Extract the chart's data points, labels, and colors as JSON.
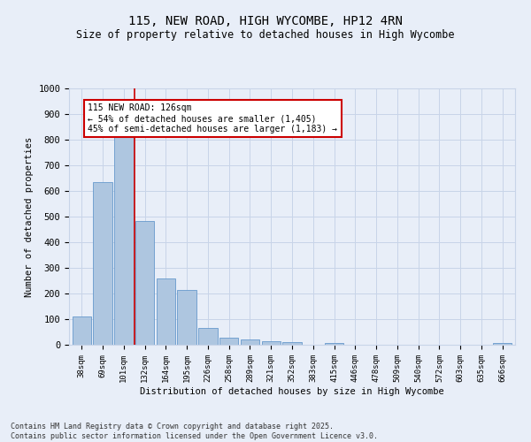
{
  "title1": "115, NEW ROAD, HIGH WYCOMBE, HP12 4RN",
  "title2": "Size of property relative to detached houses in High Wycombe",
  "xlabel": "Distribution of detached houses by size in High Wycombe",
  "ylabel": "Number of detached properties",
  "categories": [
    "38sqm",
    "69sqm",
    "101sqm",
    "132sqm",
    "164sqm",
    "195sqm",
    "226sqm",
    "258sqm",
    "289sqm",
    "321sqm",
    "352sqm",
    "383sqm",
    "415sqm",
    "446sqm",
    "478sqm",
    "509sqm",
    "540sqm",
    "572sqm",
    "603sqm",
    "635sqm",
    "666sqm"
  ],
  "values": [
    110,
    635,
    810,
    483,
    258,
    213,
    67,
    28,
    20,
    13,
    9,
    0,
    7,
    0,
    0,
    0,
    0,
    0,
    0,
    0,
    8
  ],
  "bar_color": "#aec6e0",
  "bar_edge_color": "#6699cc",
  "vline_x_index": 2.5,
  "vline_color": "#cc0000",
  "annotation_text": "115 NEW ROAD: 126sqm\n← 54% of detached houses are smaller (1,405)\n45% of semi-detached houses are larger (1,183) →",
  "annotation_box_color": "#ffffff",
  "annotation_box_edge_color": "#cc0000",
  "ylim": [
    0,
    1000
  ],
  "yticks": [
    0,
    100,
    200,
    300,
    400,
    500,
    600,
    700,
    800,
    900,
    1000
  ],
  "grid_color": "#c8d4e8",
  "bg_color": "#e8eef8",
  "footer": "Contains HM Land Registry data © Crown copyright and database right 2025.\nContains public sector information licensed under the Open Government Licence v3.0.",
  "fig_width": 6.0,
  "fig_height": 5.0,
  "dpi": 100
}
